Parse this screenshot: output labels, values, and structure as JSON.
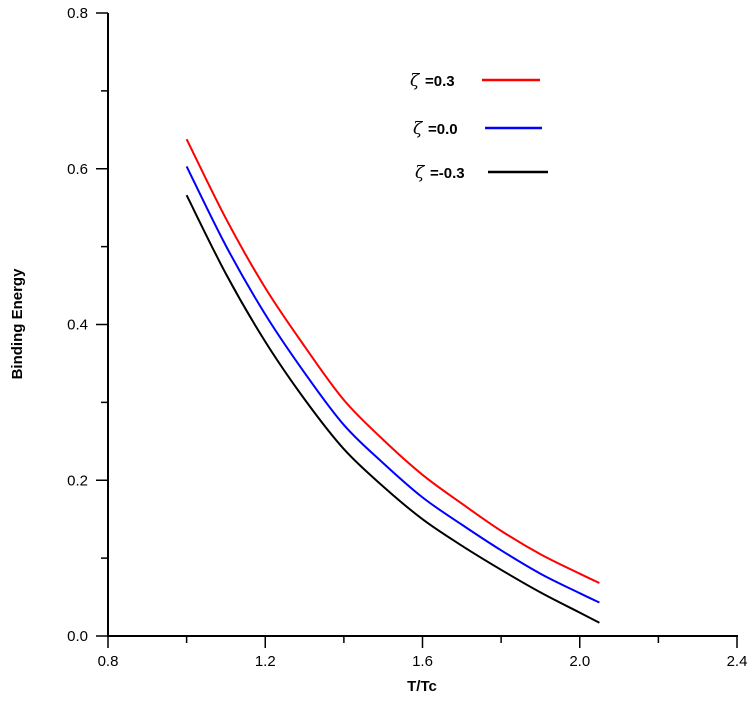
{
  "chart_data": {
    "type": "line",
    "title": "",
    "xlabel": "T/Tc",
    "ylabel": "Binding Energy",
    "xlim": [
      0.8,
      2.4
    ],
    "ylim": [
      0.0,
      0.8
    ],
    "xticks": [
      "0.8",
      "1.2",
      "1.6",
      "2.0",
      "2.4"
    ],
    "yticks": [
      "0.0",
      "0.2",
      "0.4",
      "0.6",
      "0.8"
    ],
    "xtick_values": [
      0.8,
      1.2,
      1.6,
      2.0,
      2.4
    ],
    "ytick_values": [
      0.0,
      0.2,
      0.4,
      0.6,
      0.8
    ],
    "grid": false,
    "legend_position": "top-right",
    "x": [
      1.0,
      1.1,
      1.2,
      1.3,
      1.4,
      1.5,
      1.6,
      1.7,
      1.8,
      1.9,
      2.0,
      2.05
    ],
    "series": [
      {
        "name": "=0.3",
        "symbol": "ζ",
        "color": "#ff0000",
        "values": [
          0.638,
          0.536,
          0.447,
          0.372,
          0.303,
          0.252,
          0.207,
          0.17,
          0.135,
          0.105,
          0.08,
          0.068
        ]
      },
      {
        "name": "=0.0",
        "symbol": "ζ",
        "color": "#0000ff",
        "values": [
          0.603,
          0.501,
          0.413,
          0.338,
          0.271,
          0.222,
          0.178,
          0.143,
          0.11,
          0.08,
          0.055,
          0.043
        ]
      },
      {
        "name": "=-0.3",
        "symbol": "ζ",
        "color": "#000000",
        "values": [
          0.566,
          0.465,
          0.378,
          0.304,
          0.24,
          0.192,
          0.15,
          0.116,
          0.085,
          0.056,
          0.03,
          0.017
        ]
      }
    ]
  }
}
